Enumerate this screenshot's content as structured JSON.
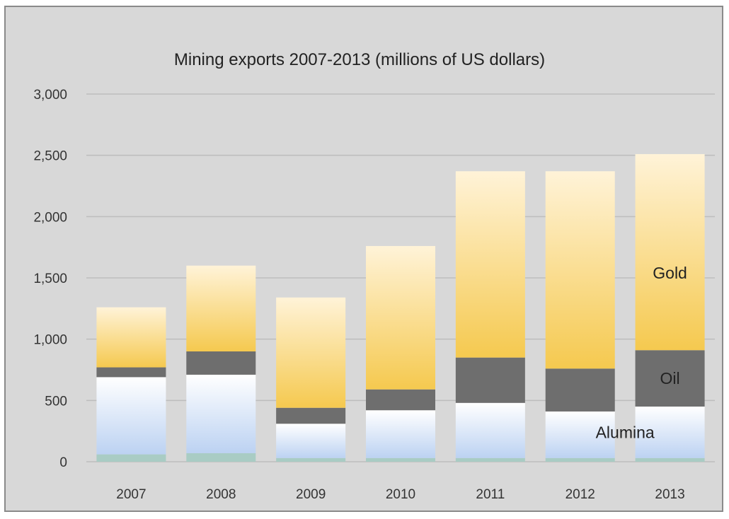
{
  "chart_data": {
    "type": "bar",
    "stacked": true,
    "title": "Mining exports 2007-2013 (millions of US dollars)",
    "xlabel": "",
    "ylabel": "",
    "categories": [
      "2007",
      "2008",
      "2009",
      "2010",
      "2011",
      "2012",
      "2013"
    ],
    "ylim": [
      0,
      3000
    ],
    "yticks": [
      0,
      500,
      1000,
      1500,
      2000,
      2500,
      3000
    ],
    "ytick_labels": [
      "0",
      "500",
      "1,000",
      "1,500",
      "2,000",
      "2,500",
      "3,000"
    ],
    "grid": true,
    "series": [
      {
        "name": "",
        "color": "#9fc4be",
        "values": [
          60,
          70,
          30,
          30,
          30,
          30,
          30
        ]
      },
      {
        "name": "Alumina",
        "color": "#c9d9f5",
        "values": [
          630,
          640,
          280,
          390,
          450,
          380,
          420
        ]
      },
      {
        "name": "Oil",
        "color": "#6f6f6f",
        "values": [
          80,
          190,
          130,
          170,
          370,
          350,
          460
        ]
      },
      {
        "name": "Gold",
        "color": "#f7cf6a",
        "values": [
          490,
          700,
          900,
          1170,
          1520,
          1610,
          1600
        ]
      }
    ],
    "series_labels_on_chart": [
      {
        "text": "Gold",
        "anchor_category": "2013"
      },
      {
        "text": "Oil",
        "anchor_category": "2013"
      },
      {
        "text": "Alumina",
        "anchor_category": "2012"
      }
    ]
  }
}
